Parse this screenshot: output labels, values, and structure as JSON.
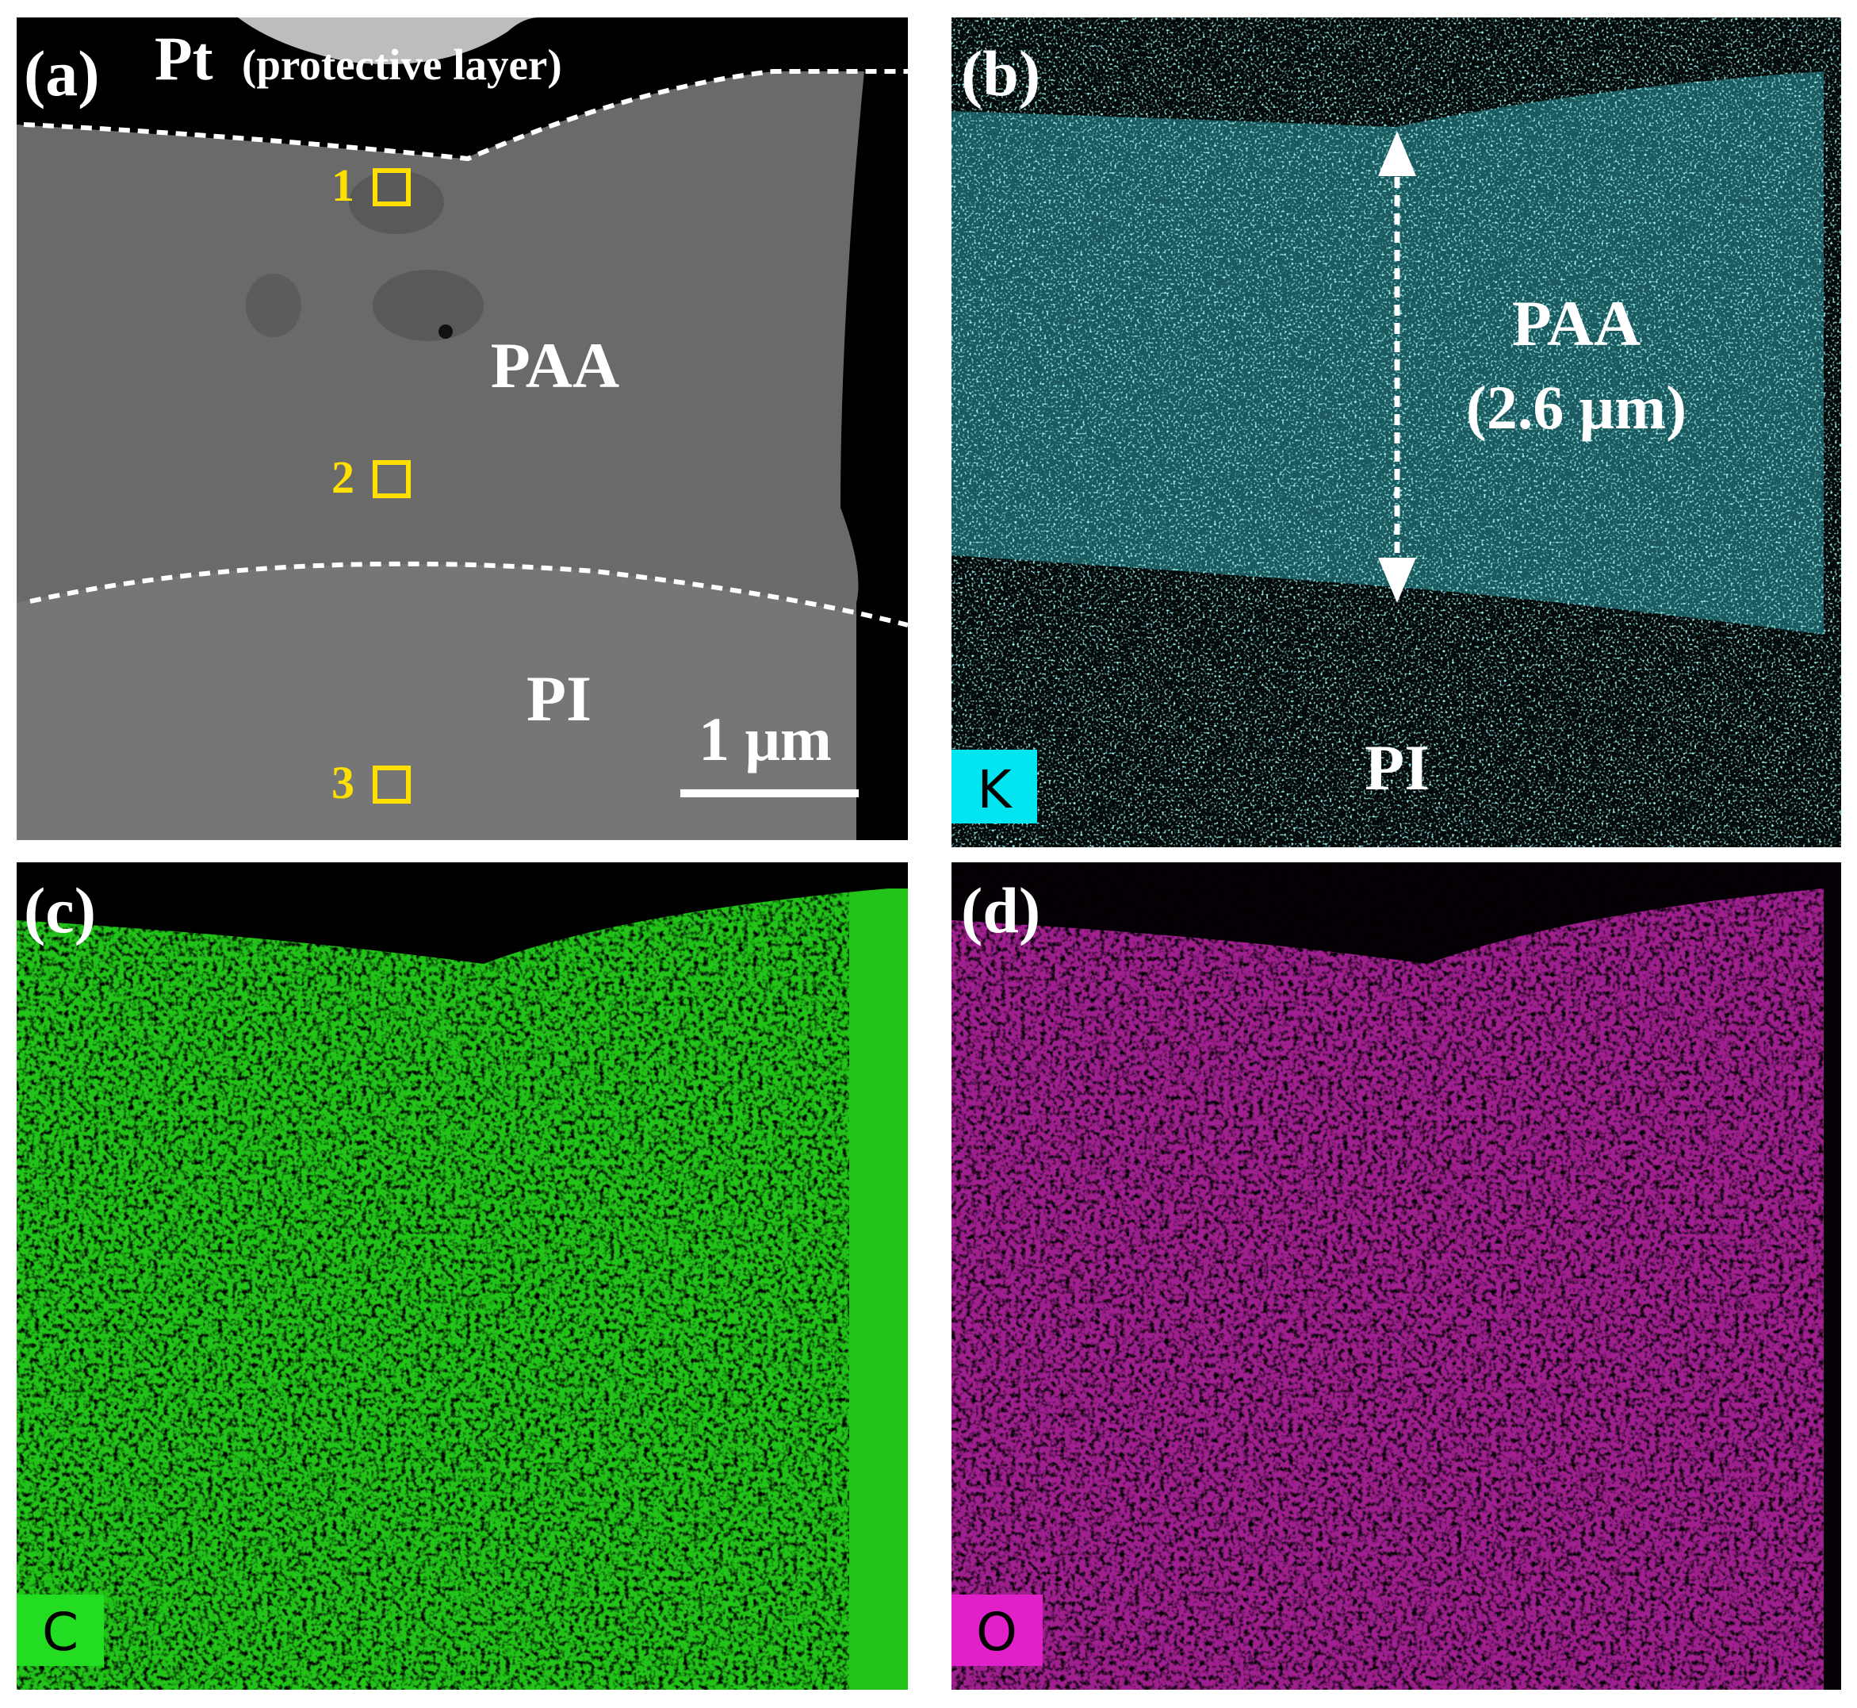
{
  "panels": [
    {
      "label": "(a)",
      "layer": "Pt",
      "layer_note": "(protective layer)",
      "markers": [
        "1",
        "2",
        "3"
      ],
      "region_top": "PAA",
      "region_bottom": "PI",
      "scale_bar": "1 μm"
    },
    {
      "label": "(b)",
      "region_top": "PAA",
      "thickness": "(2.6 μm)",
      "region_bottom": "PI",
      "element": "K"
    },
    {
      "label": "(c)",
      "element": "C"
    },
    {
      "label": "(d)",
      "element": "O"
    }
  ]
}
